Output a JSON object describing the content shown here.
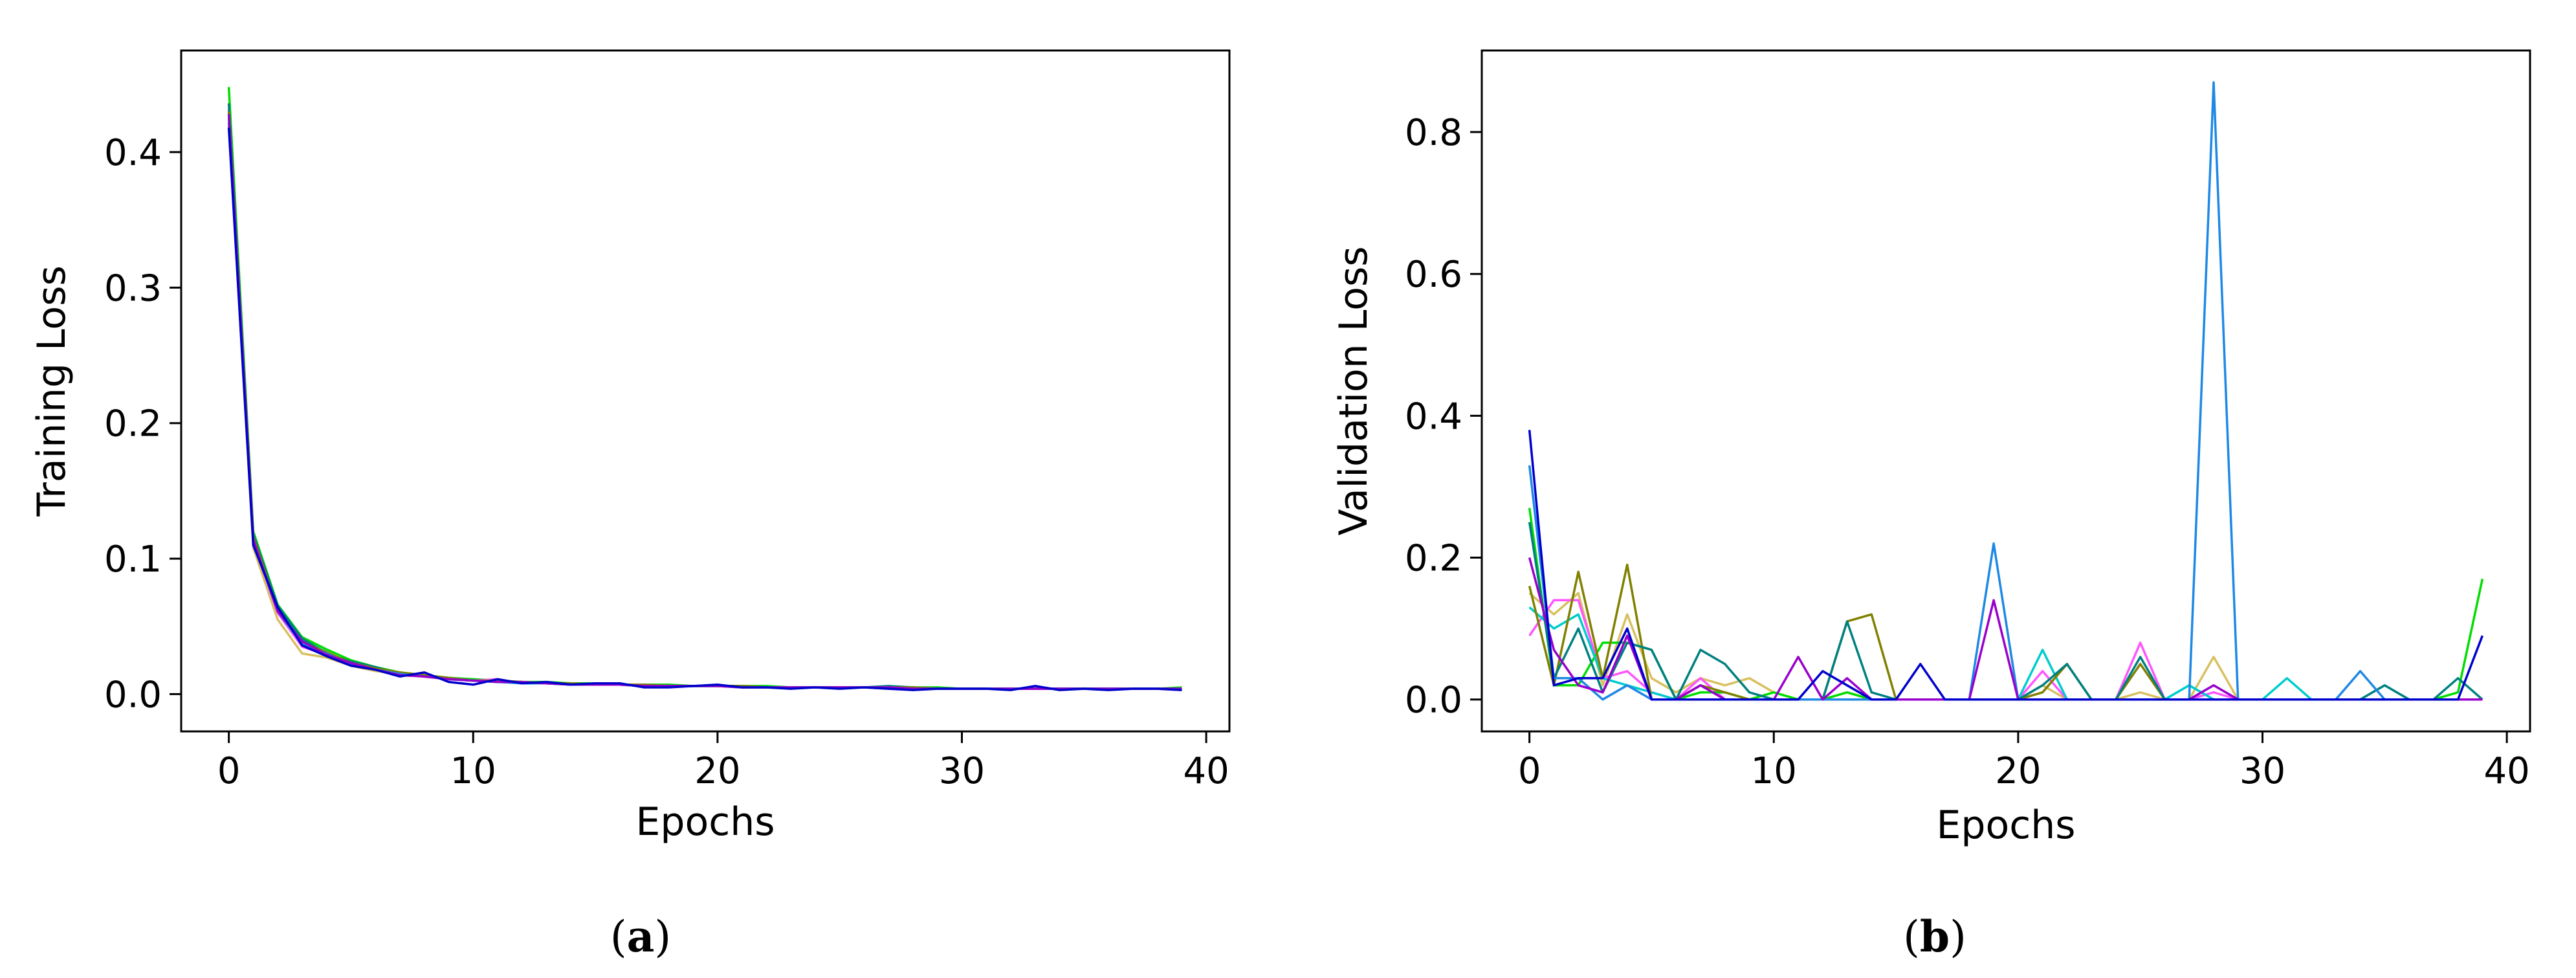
{
  "chart_data": [
    {
      "type": "line",
      "panel_label": "a",
      "xlabel": "Epochs",
      "ylabel": "Training Loss",
      "xlim": [
        -1.95,
        40.95
      ],
      "ylim": [
        -0.0275,
        0.475
      ],
      "xticks": [
        "0",
        "10",
        "20",
        "30",
        "40"
      ],
      "yticks": [
        "0.0",
        "0.1",
        "0.2",
        "0.3",
        "0.4"
      ],
      "grid": false,
      "legend": "none",
      "x": [
        0,
        1,
        2,
        3,
        4,
        5,
        6,
        7,
        8,
        9,
        10,
        11,
        12,
        13,
        14,
        15,
        16,
        17,
        18,
        19,
        20,
        21,
        22,
        23,
        24,
        25,
        26,
        27,
        28,
        29,
        30,
        31,
        32,
        33,
        34,
        35,
        36,
        37,
        38,
        39
      ],
      "series": [
        {
          "color": "#00dd00",
          "values": [
            0.448,
            0.12,
            0.066,
            0.042,
            0.033,
            0.025,
            0.02,
            0.016,
            0.014,
            0.012,
            0.011,
            0.01,
            0.009,
            0.009,
            0.008,
            0.008,
            0.007,
            0.007,
            0.007,
            0.006,
            0.006,
            0.006,
            0.006,
            0.005,
            0.005,
            0.005,
            0.005,
            0.005,
            0.005,
            0.005,
            0.004,
            0.004,
            0.004,
            0.004,
            0.004,
            0.004,
            0.004,
            0.004,
            0.004,
            0.005
          ]
        },
        {
          "color": "#d8c060",
          "values": [
            0.42,
            0.108,
            0.055,
            0.03,
            0.027,
            0.021,
            0.017,
            0.015,
            0.013,
            0.011,
            0.01,
            0.009,
            0.009,
            0.008,
            0.008,
            0.007,
            0.007,
            0.007,
            0.006,
            0.006,
            0.006,
            0.006,
            0.005,
            0.005,
            0.005,
            0.005,
            0.005,
            0.005,
            0.005,
            0.004,
            0.004,
            0.004,
            0.004,
            0.004,
            0.004,
            0.004,
            0.004,
            0.004,
            0.004,
            0.004
          ]
        },
        {
          "color": "#ff55ff",
          "values": [
            0.432,
            0.112,
            0.06,
            0.035,
            0.029,
            0.023,
            0.018,
            0.015,
            0.013,
            0.011,
            0.01,
            0.011,
            0.008,
            0.008,
            0.007,
            0.007,
            0.007,
            0.006,
            0.006,
            0.006,
            0.006,
            0.005,
            0.005,
            0.005,
            0.005,
            0.005,
            0.005,
            0.004,
            0.004,
            0.004,
            0.004,
            0.004,
            0.004,
            0.004,
            0.004,
            0.004,
            0.004,
            0.004,
            0.004,
            0.003
          ]
        },
        {
          "color": "#00cccc",
          "values": [
            0.425,
            0.115,
            0.063,
            0.04,
            0.031,
            0.022,
            0.019,
            0.015,
            0.014,
            0.012,
            0.01,
            0.009,
            0.009,
            0.008,
            0.007,
            0.007,
            0.007,
            0.007,
            0.006,
            0.006,
            0.006,
            0.006,
            0.005,
            0.005,
            0.005,
            0.005,
            0.005,
            0.005,
            0.005,
            0.004,
            0.004,
            0.004,
            0.004,
            0.004,
            0.004,
            0.004,
            0.004,
            0.004,
            0.004,
            0.004
          ]
        },
        {
          "color": "#008080",
          "values": [
            0.436,
            0.118,
            0.065,
            0.041,
            0.03,
            0.024,
            0.02,
            0.015,
            0.014,
            0.011,
            0.01,
            0.009,
            0.009,
            0.008,
            0.008,
            0.007,
            0.007,
            0.006,
            0.006,
            0.006,
            0.006,
            0.006,
            0.005,
            0.005,
            0.005,
            0.005,
            0.005,
            0.006,
            0.005,
            0.004,
            0.004,
            0.004,
            0.004,
            0.004,
            0.004,
            0.004,
            0.004,
            0.004,
            0.004,
            0.004
          ]
        },
        {
          "color": "#808000",
          "values": [
            0.43,
            0.116,
            0.062,
            0.038,
            0.031,
            0.023,
            0.019,
            0.016,
            0.014,
            0.012,
            0.01,
            0.01,
            0.009,
            0.008,
            0.008,
            0.007,
            0.007,
            0.007,
            0.006,
            0.006,
            0.006,
            0.006,
            0.005,
            0.005,
            0.005,
            0.005,
            0.005,
            0.005,
            0.005,
            0.004,
            0.004,
            0.004,
            0.004,
            0.004,
            0.004,
            0.004,
            0.004,
            0.004,
            0.004,
            0.004
          ]
        },
        {
          "color": "#1e88e5",
          "values": [
            0.422,
            0.113,
            0.061,
            0.037,
            0.03,
            0.022,
            0.018,
            0.015,
            0.013,
            0.011,
            0.01,
            0.009,
            0.008,
            0.008,
            0.007,
            0.007,
            0.007,
            0.006,
            0.006,
            0.006,
            0.006,
            0.005,
            0.005,
            0.005,
            0.005,
            0.005,
            0.005,
            0.005,
            0.004,
            0.004,
            0.004,
            0.004,
            0.004,
            0.004,
            0.004,
            0.004,
            0.004,
            0.004,
            0.004,
            0.004
          ]
        },
        {
          "color": "#9900cc",
          "values": [
            0.428,
            0.114,
            0.061,
            0.039,
            0.029,
            0.023,
            0.018,
            0.014,
            0.013,
            0.011,
            0.01,
            0.009,
            0.009,
            0.008,
            0.007,
            0.007,
            0.007,
            0.006,
            0.006,
            0.006,
            0.006,
            0.005,
            0.005,
            0.005,
            0.005,
            0.005,
            0.005,
            0.005,
            0.004,
            0.004,
            0.004,
            0.004,
            0.004,
            0.004,
            0.004,
            0.004,
            0.004,
            0.004,
            0.004,
            0.004
          ]
        },
        {
          "color": "#0000cc",
          "values": [
            0.418,
            0.11,
            0.064,
            0.036,
            0.028,
            0.021,
            0.018,
            0.013,
            0.016,
            0.009,
            0.007,
            0.011,
            0.008,
            0.009,
            0.007,
            0.008,
            0.008,
            0.005,
            0.005,
            0.006,
            0.007,
            0.005,
            0.005,
            0.004,
            0.005,
            0.004,
            0.005,
            0.004,
            0.003,
            0.004,
            0.004,
            0.004,
            0.003,
            0.006,
            0.003,
            0.004,
            0.003,
            0.004,
            0.004,
            0.003
          ]
        }
      ]
    },
    {
      "type": "line",
      "panel_label": "b",
      "xlabel": "Epochs",
      "ylabel": "Validation Loss",
      "xlim": [
        -1.95,
        40.95
      ],
      "ylim": [
        -0.045,
        0.915
      ],
      "xticks": [
        "0",
        "10",
        "20",
        "30",
        "40"
      ],
      "yticks": [
        "0.0",
        "0.2",
        "0.4",
        "0.6",
        "0.8"
      ],
      "grid": false,
      "legend": "none",
      "x": [
        0,
        1,
        2,
        3,
        4,
        5,
        6,
        7,
        8,
        9,
        10,
        11,
        12,
        13,
        14,
        15,
        16,
        17,
        18,
        19,
        20,
        21,
        22,
        23,
        24,
        25,
        26,
        27,
        28,
        29,
        30,
        31,
        32,
        33,
        34,
        35,
        36,
        37,
        38,
        39
      ],
      "series": [
        {
          "color": "#d8c060",
          "values": [
            0.15,
            0.12,
            0.15,
            0.02,
            0.12,
            0.03,
            0.01,
            0.03,
            0.02,
            0.03,
            0.01,
            0.0,
            0.0,
            0.01,
            0.0,
            0.0,
            0.0,
            0.0,
            0.0,
            0.0,
            0.0,
            0.02,
            0.0,
            0.0,
            0.0,
            0.01,
            0.0,
            0.0,
            0.06,
            0.0,
            0.0,
            0.0,
            0.0,
            0.0,
            0.0,
            0.0,
            0.0,
            0.0,
            0.0,
            0.0
          ]
        },
        {
          "color": "#ff55ff",
          "values": [
            0.09,
            0.14,
            0.14,
            0.03,
            0.04,
            0.01,
            0.0,
            0.03,
            0.0,
            0.0,
            0.0,
            0.0,
            0.0,
            0.0,
            0.0,
            0.0,
            0.0,
            0.0,
            0.0,
            0.0,
            0.0,
            0.04,
            0.0,
            0.0,
            0.0,
            0.08,
            0.0,
            0.0,
            0.01,
            0.0,
            0.0,
            0.0,
            0.0,
            0.0,
            0.0,
            0.0,
            0.0,
            0.0,
            0.0,
            0.0
          ]
        },
        {
          "color": "#00dd00",
          "values": [
            0.27,
            0.02,
            0.02,
            0.08,
            0.08,
            0.07,
            0.0,
            0.01,
            0.01,
            0.0,
            0.01,
            0.0,
            0.0,
            0.01,
            0.0,
            0.0,
            0.0,
            0.0,
            0.0,
            0.0,
            0.0,
            0.0,
            0.0,
            0.0,
            0.0,
            0.0,
            0.0,
            0.0,
            0.0,
            0.0,
            0.0,
            0.0,
            0.0,
            0.0,
            0.0,
            0.0,
            0.0,
            0.0,
            0.01,
            0.17
          ]
        },
        {
          "color": "#00cccc",
          "values": [
            0.13,
            0.1,
            0.12,
            0.03,
            0.02,
            0.01,
            0.0,
            0.0,
            0.0,
            0.0,
            0.0,
            0.0,
            0.0,
            0.0,
            0.0,
            0.0,
            0.0,
            0.0,
            0.0,
            0.0,
            0.0,
            0.07,
            0.0,
            0.0,
            0.0,
            0.0,
            0.0,
            0.02,
            0.0,
            0.0,
            0.0,
            0.03,
            0.0,
            0.0,
            0.0,
            0.0,
            0.0,
            0.0,
            0.0,
            0.0
          ]
        },
        {
          "color": "#808000",
          "values": [
            0.16,
            0.02,
            0.18,
            0.03,
            0.19,
            0.0,
            0.0,
            0.02,
            0.01,
            0.0,
            0.0,
            0.0,
            0.0,
            0.11,
            0.12,
            0.0,
            0.0,
            0.0,
            0.0,
            0.0,
            0.0,
            0.01,
            0.05,
            0.0,
            0.0,
            0.05,
            0.0,
            0.0,
            0.0,
            0.0,
            0.0,
            0.0,
            0.0,
            0.0,
            0.0,
            0.0,
            0.0,
            0.0,
            0.0,
            0.0
          ]
        },
        {
          "color": "#008080",
          "values": [
            0.25,
            0.03,
            0.1,
            0.01,
            0.08,
            0.07,
            0.0,
            0.07,
            0.05,
            0.01,
            0.0,
            0.0,
            0.0,
            0.11,
            0.01,
            0.0,
            0.0,
            0.0,
            0.0,
            0.0,
            0.0,
            0.02,
            0.05,
            0.0,
            0.0,
            0.06,
            0.0,
            0.0,
            0.0,
            0.0,
            0.0,
            0.0,
            0.0,
            0.0,
            0.0,
            0.02,
            0.0,
            0.0,
            0.03,
            0.0
          ]
        },
        {
          "color": "#1e88e5",
          "values": [
            0.33,
            0.03,
            0.03,
            0.0,
            0.02,
            0.0,
            0.0,
            0.0,
            0.0,
            0.0,
            0.0,
            0.0,
            0.0,
            0.0,
            0.0,
            0.0,
            0.0,
            0.0,
            0.0,
            0.22,
            0.0,
            0.0,
            0.0,
            0.0,
            0.0,
            0.0,
            0.0,
            0.0,
            0.87,
            0.0,
            0.0,
            0.0,
            0.0,
            0.0,
            0.04,
            0.0,
            0.0,
            0.0,
            0.0,
            0.0
          ]
        },
        {
          "color": "#9900cc",
          "values": [
            0.2,
            0.07,
            0.02,
            0.01,
            0.09,
            0.0,
            0.0,
            0.02,
            0.0,
            0.0,
            0.0,
            0.06,
            0.0,
            0.03,
            0.0,
            0.0,
            0.0,
            0.0,
            0.0,
            0.14,
            0.0,
            0.0,
            0.0,
            0.0,
            0.0,
            0.0,
            0.0,
            0.0,
            0.02,
            0.0,
            0.0,
            0.0,
            0.0,
            0.0,
            0.0,
            0.0,
            0.0,
            0.0,
            0.0,
            0.0
          ]
        },
        {
          "color": "#0000cc",
          "values": [
            0.38,
            0.02,
            0.03,
            0.03,
            0.1,
            0.0,
            0.0,
            0.0,
            0.0,
            0.0,
            0.0,
            0.0,
            0.04,
            0.02,
            0.0,
            0.0,
            0.05,
            0.0,
            0.0,
            0.0,
            0.0,
            0.0,
            0.0,
            0.0,
            0.0,
            0.0,
            0.0,
            0.0,
            0.0,
            0.0,
            0.0,
            0.0,
            0.0,
            0.0,
            0.0,
            0.0,
            0.0,
            0.0,
            0.0,
            0.09
          ]
        }
      ]
    }
  ]
}
